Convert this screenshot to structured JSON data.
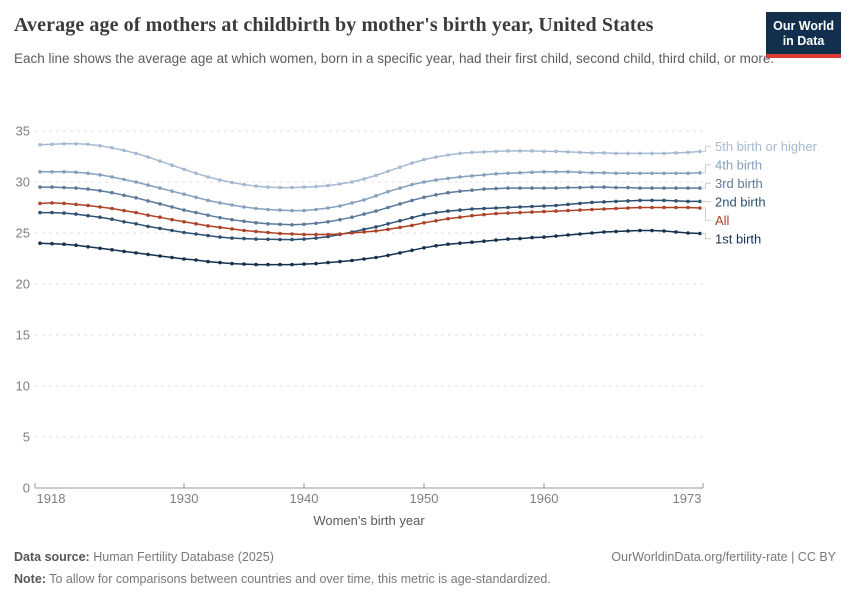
{
  "header": {
    "title": "Average age of mothers at childbirth by mother's birth year, United States",
    "subtitle": "Each line shows the average age at which women, born in a specific year, had their first child, second child, third child, or more.",
    "logo_line1": "Our World",
    "logo_line2": "in Data"
  },
  "colors": {
    "logo_bg": "#12304e",
    "logo_accent": "#dc3d33",
    "grid": "#e0e0e0",
    "axis": "#9a9a9a",
    "tick_text": "#7f7f7f",
    "axis_title_text": "#5a5a5a"
  },
  "chart_data": {
    "type": "line",
    "title": "Average age of mothers at childbirth by mother's birth year, United States",
    "xlabel": "Women's birth year",
    "ylabel": "",
    "grid": true,
    "markers": true,
    "legend_position": "right",
    "ylim": [
      0,
      35
    ],
    "xlim": [
      1918,
      1973
    ],
    "x_ticks": [
      1918,
      1930,
      1940,
      1950,
      1960,
      1973
    ],
    "y_ticks": [
      0,
      5,
      10,
      15,
      20,
      25,
      30,
      35
    ],
    "x": [
      1918,
      1919,
      1920,
      1921,
      1922,
      1923,
      1924,
      1925,
      1926,
      1927,
      1928,
      1929,
      1930,
      1931,
      1932,
      1933,
      1934,
      1935,
      1936,
      1937,
      1938,
      1939,
      1940,
      1941,
      1942,
      1943,
      1944,
      1945,
      1946,
      1947,
      1948,
      1949,
      1950,
      1951,
      1952,
      1953,
      1954,
      1955,
      1956,
      1957,
      1958,
      1959,
      1960,
      1961,
      1962,
      1963,
      1964,
      1965,
      1966,
      1967,
      1968,
      1969,
      1970,
      1971,
      1972,
      1973
    ],
    "series": [
      {
        "name": "5th birth or higher",
        "color": "#a5bad2",
        "values": [
          33.65,
          33.7,
          33.75,
          33.75,
          33.7,
          33.55,
          33.35,
          33.1,
          32.8,
          32.45,
          32.05,
          31.65,
          31.25,
          30.85,
          30.5,
          30.2,
          29.95,
          29.75,
          29.6,
          29.5,
          29.45,
          29.45,
          29.5,
          29.55,
          29.65,
          29.8,
          30.0,
          30.3,
          30.65,
          31.05,
          31.45,
          31.85,
          32.2,
          32.45,
          32.65,
          32.8,
          32.9,
          32.95,
          33.0,
          33.05,
          33.05,
          33.05,
          33.0,
          33.0,
          32.95,
          32.9,
          32.85,
          32.85,
          32.8,
          32.8,
          32.8,
          32.8,
          32.8,
          32.85,
          32.9,
          33.0
        ]
      },
      {
        "name": "4th birth",
        "color": "#85a0bd",
        "values": [
          31.0,
          31.0,
          31.0,
          30.95,
          30.85,
          30.7,
          30.5,
          30.25,
          30.0,
          29.7,
          29.4,
          29.1,
          28.8,
          28.5,
          28.2,
          27.95,
          27.75,
          27.55,
          27.4,
          27.3,
          27.25,
          27.2,
          27.2,
          27.3,
          27.45,
          27.65,
          27.95,
          28.25,
          28.65,
          29.05,
          29.4,
          29.75,
          30.0,
          30.2,
          30.35,
          30.5,
          30.6,
          30.7,
          30.8,
          30.85,
          30.9,
          30.95,
          31.0,
          31.0,
          31.0,
          30.95,
          30.9,
          30.9,
          30.85,
          30.85,
          30.85,
          30.85,
          30.85,
          30.85,
          30.85,
          30.9
        ]
      },
      {
        "name": "3rd birth",
        "color": "#5d7a9c",
        "values": [
          29.5,
          29.5,
          29.45,
          29.4,
          29.3,
          29.15,
          28.95,
          28.7,
          28.45,
          28.15,
          27.85,
          27.55,
          27.25,
          27.0,
          26.75,
          26.5,
          26.3,
          26.15,
          26.0,
          25.9,
          25.85,
          25.8,
          25.85,
          25.95,
          26.1,
          26.3,
          26.55,
          26.85,
          27.15,
          27.5,
          27.85,
          28.2,
          28.5,
          28.75,
          28.95,
          29.1,
          29.2,
          29.3,
          29.35,
          29.4,
          29.4,
          29.4,
          29.4,
          29.4,
          29.45,
          29.45,
          29.5,
          29.5,
          29.45,
          29.45,
          29.4,
          29.4,
          29.4,
          29.4,
          29.4,
          29.4
        ]
      },
      {
        "name": "2nd birth",
        "color": "#2e5172",
        "values": [
          27.0,
          27.0,
          26.95,
          26.85,
          26.7,
          26.55,
          26.35,
          26.1,
          25.9,
          25.65,
          25.45,
          25.25,
          25.05,
          24.9,
          24.75,
          24.6,
          24.5,
          24.45,
          24.4,
          24.38,
          24.36,
          24.35,
          24.4,
          24.5,
          24.65,
          24.85,
          25.1,
          25.35,
          25.6,
          25.9,
          26.2,
          26.5,
          26.8,
          27.0,
          27.15,
          27.25,
          27.35,
          27.4,
          27.45,
          27.5,
          27.55,
          27.6,
          27.65,
          27.7,
          27.8,
          27.9,
          28.0,
          28.05,
          28.1,
          28.15,
          28.2,
          28.2,
          28.2,
          28.15,
          28.1,
          28.1
        ]
      },
      {
        "name": "All",
        "color": "#ae4226",
        "values": [
          27.9,
          27.95,
          27.9,
          27.8,
          27.7,
          27.55,
          27.4,
          27.2,
          27.0,
          26.75,
          26.55,
          26.3,
          26.1,
          25.9,
          25.7,
          25.55,
          25.4,
          25.25,
          25.15,
          25.05,
          24.95,
          24.9,
          24.85,
          24.85,
          24.85,
          24.9,
          25.0,
          25.1,
          25.2,
          25.35,
          25.55,
          25.75,
          26.0,
          26.2,
          26.4,
          26.55,
          26.7,
          26.8,
          26.9,
          26.95,
          27.0,
          27.05,
          27.1,
          27.15,
          27.2,
          27.25,
          27.3,
          27.35,
          27.4,
          27.45,
          27.5,
          27.5,
          27.5,
          27.5,
          27.5,
          27.45
        ]
      },
      {
        "name": "1st birth",
        "color": "#16304f",
        "values": [
          24.0,
          23.95,
          23.9,
          23.8,
          23.65,
          23.5,
          23.35,
          23.2,
          23.05,
          22.9,
          22.75,
          22.6,
          22.45,
          22.35,
          22.2,
          22.1,
          22.0,
          21.95,
          21.9,
          21.9,
          21.9,
          21.9,
          21.95,
          22.0,
          22.1,
          22.2,
          22.3,
          22.45,
          22.6,
          22.8,
          23.05,
          23.3,
          23.55,
          23.75,
          23.9,
          24.0,
          24.1,
          24.2,
          24.3,
          24.4,
          24.45,
          24.55,
          24.6,
          24.7,
          24.8,
          24.9,
          25.0,
          25.1,
          25.15,
          25.2,
          25.25,
          25.25,
          25.2,
          25.1,
          25.0,
          24.95
        ]
      }
    ]
  },
  "footer": {
    "datasource_label": "Data source:",
    "datasource": "Human Fertility Database (2025)",
    "link": "OurWorldinData.org/fertility-rate | CC BY",
    "note_label": "Note:",
    "note": "To allow for comparisons between countries and over time, this metric is age-standardized."
  }
}
